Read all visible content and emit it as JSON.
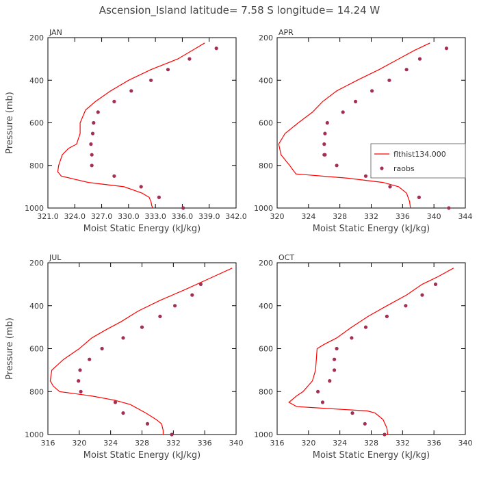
{
  "figure": {
    "title": "Ascension_Island  latitude= 7.58 S longitude= 14.24 W"
  },
  "colors": {
    "model_line": "#ff0000",
    "obs_marker": "#a33050",
    "axis": "#000000",
    "text": "#444444"
  },
  "legend": {
    "panel": 1,
    "placement": "right-middle",
    "entries": [
      {
        "label": "flthist134.000",
        "kind": "line"
      },
      {
        "label": "raobs",
        "kind": "marker"
      }
    ]
  },
  "chart_data": [
    {
      "type": "line",
      "panel_label": "JAN",
      "xlabel": "Moist Static Energy (kJ/kg)",
      "ylabel": "Pressure (mb)",
      "xlim": [
        321.0,
        342.0
      ],
      "ylim": [
        1000,
        200
      ],
      "xticks": [
        321.0,
        324.0,
        327.0,
        330.0,
        333.0,
        336.0,
        339.0,
        342.0
      ],
      "xtick_labels": [
        "321.0",
        "324.0",
        "327.0",
        "330.0",
        "333.0",
        "336.0",
        "339.0",
        "342.0"
      ],
      "yticks": [
        200,
        400,
        600,
        800,
        1000
      ],
      "ytick_labels": [
        "200",
        "400",
        "600",
        "800",
        "1000"
      ],
      "series": [
        {
          "name": "flthist134.000",
          "style": "line",
          "x": [
            338.5,
            337.5,
            335.5,
            332.5,
            330.0,
            328.0,
            326.3,
            325.2,
            324.6,
            324.6,
            324.2,
            323.3,
            322.6,
            322.2,
            322.1,
            322.5,
            325.5,
            329.5,
            331.5,
            332.3,
            332.5,
            332.6,
            332.7
          ],
          "y": [
            225,
            250,
            300,
            350,
            400,
            450,
            500,
            540,
            600,
            650,
            700,
            720,
            750,
            800,
            830,
            850,
            880,
            900,
            930,
            950,
            970,
            990,
            1010
          ]
        },
        {
          "name": "raobs",
          "style": "marker",
          "x": [
            339.8,
            336.8,
            334.4,
            332.5,
            330.3,
            328.4,
            326.6,
            326.1,
            326.0,
            325.8,
            325.9,
            325.9,
            328.4,
            331.4,
            333.4,
            336.1
          ],
          "y": [
            250,
            300,
            350,
            400,
            450,
            500,
            550,
            600,
            650,
            700,
            750,
            800,
            850,
            900,
            950,
            1000
          ]
        }
      ]
    },
    {
      "type": "line",
      "panel_label": "APR",
      "xlabel": "Moist Static Energy (kJ/kg)",
      "ylabel": "",
      "xlim": [
        320,
        344
      ],
      "ylim": [
        1000,
        200
      ],
      "xticks": [
        320,
        324,
        328,
        332,
        336,
        340,
        344
      ],
      "xtick_labels": [
        "320",
        "324",
        "328",
        "332",
        "336",
        "340",
        "344"
      ],
      "yticks": [
        200,
        400,
        600,
        800,
        1000
      ],
      "ytick_labels": [
        "200",
        "400",
        "600",
        "800",
        "1000"
      ],
      "series": [
        {
          "name": "flthist134.000",
          "style": "line",
          "x": [
            339.5,
            337.5,
            335.5,
            333.0,
            330.2,
            327.6,
            325.8,
            324.5,
            322.7,
            321.0,
            320.2,
            320.5,
            321.6,
            322.2,
            322.4,
            329.0,
            333.5,
            335.5,
            336.5,
            336.9,
            337.0
          ],
          "y": [
            225,
            260,
            300,
            350,
            400,
            450,
            500,
            550,
            600,
            650,
            700,
            750,
            800,
            830,
            840,
            860,
            880,
            900,
            930,
            970,
            1010
          ]
        },
        {
          "name": "raobs",
          "style": "marker",
          "x": [
            341.6,
            338.2,
            336.5,
            334.3,
            332.1,
            330.0,
            328.4,
            326.4,
            326.1,
            326.0,
            326.0,
            326.1,
            327.6,
            331.3,
            334.4,
            338.1,
            341.9
          ],
          "y": [
            250,
            300,
            350,
            400,
            450,
            500,
            550,
            600,
            650,
            700,
            750,
            750,
            800,
            850,
            900,
            950,
            1000
          ]
        }
      ]
    },
    {
      "type": "line",
      "panel_label": "JUL",
      "xlabel": "Moist Static Energy (kJ/kg)",
      "ylabel": "Pressure (mb)",
      "xlim": [
        316,
        340
      ],
      "ylim": [
        1000,
        200
      ],
      "xticks": [
        316,
        320,
        324,
        328,
        332,
        336,
        340
      ],
      "xtick_labels": [
        "316",
        "320",
        "324",
        "328",
        "332",
        "336",
        "340"
      ],
      "yticks": [
        200,
        400,
        600,
        800,
        1000
      ],
      "ytick_labels": [
        "200",
        "400",
        "600",
        "800",
        "1000"
      ],
      "series": [
        {
          "name": "flthist134.000",
          "style": "line",
          "x": [
            339.5,
            336.5,
            333.5,
            330.3,
            327.5,
            325.3,
            323.5,
            321.6,
            320.0,
            318.0,
            316.5,
            316.3,
            316.7,
            317.5,
            321.5,
            324.5,
            326.5,
            328.5,
            329.8,
            330.5,
            330.7,
            330.7
          ],
          "y": [
            225,
            275,
            325,
            375,
            425,
            475,
            510,
            550,
            600,
            650,
            700,
            750,
            775,
            800,
            820,
            840,
            860,
            900,
            930,
            950,
            980,
            1010
          ]
        },
        {
          "name": "raobs",
          "style": "marker",
          "x": [
            335.5,
            334.4,
            332.2,
            330.3,
            328.0,
            325.6,
            322.9,
            321.3,
            320.1,
            319.9,
            320.2,
            324.6,
            325.6,
            328.7,
            331.8
          ],
          "y": [
            300,
            350,
            400,
            450,
            500,
            550,
            600,
            650,
            700,
            750,
            800,
            850,
            900,
            950,
            1000
          ]
        }
      ]
    },
    {
      "type": "line",
      "panel_label": "OCT",
      "xlabel": "Moist Static Energy (kJ/kg)",
      "ylabel": "",
      "xlim": [
        316,
        340
      ],
      "ylim": [
        1000,
        200
      ],
      "xticks": [
        316,
        320,
        324,
        328,
        332,
        336,
        340
      ],
      "xtick_labels": [
        "316",
        "320",
        "324",
        "328",
        "332",
        "336",
        "340"
      ],
      "yticks": [
        200,
        400,
        600,
        800,
        1000
      ],
      "ytick_labels": [
        "200",
        "400",
        "600",
        "800",
        "1000"
      ],
      "series": [
        {
          "name": "flthist134.000",
          "style": "line",
          "x": [
            338.5,
            336.5,
            334.5,
            332.5,
            330.0,
            327.6,
            325.5,
            323.6,
            322.0,
            321.1,
            321.0,
            320.9,
            320.5,
            319.3,
            318.5,
            317.5,
            318.5,
            323.0,
            327.5,
            328.5,
            329.5,
            330.0,
            330.1
          ],
          "y": [
            225,
            265,
            300,
            350,
            400,
            450,
            500,
            550,
            580,
            600,
            650,
            700,
            750,
            800,
            820,
            850,
            870,
            880,
            890,
            900,
            930,
            970,
            1010
          ]
        },
        {
          "name": "raobs",
          "style": "marker",
          "x": [
            336.2,
            334.5,
            332.4,
            330.0,
            327.3,
            325.5,
            323.6,
            323.3,
            323.3,
            322.7,
            321.2,
            321.8,
            325.6,
            327.2,
            329.7
          ],
          "y": [
            300,
            350,
            400,
            450,
            500,
            550,
            600,
            650,
            700,
            750,
            800,
            850,
            900,
            950,
            1000
          ]
        }
      ]
    }
  ]
}
